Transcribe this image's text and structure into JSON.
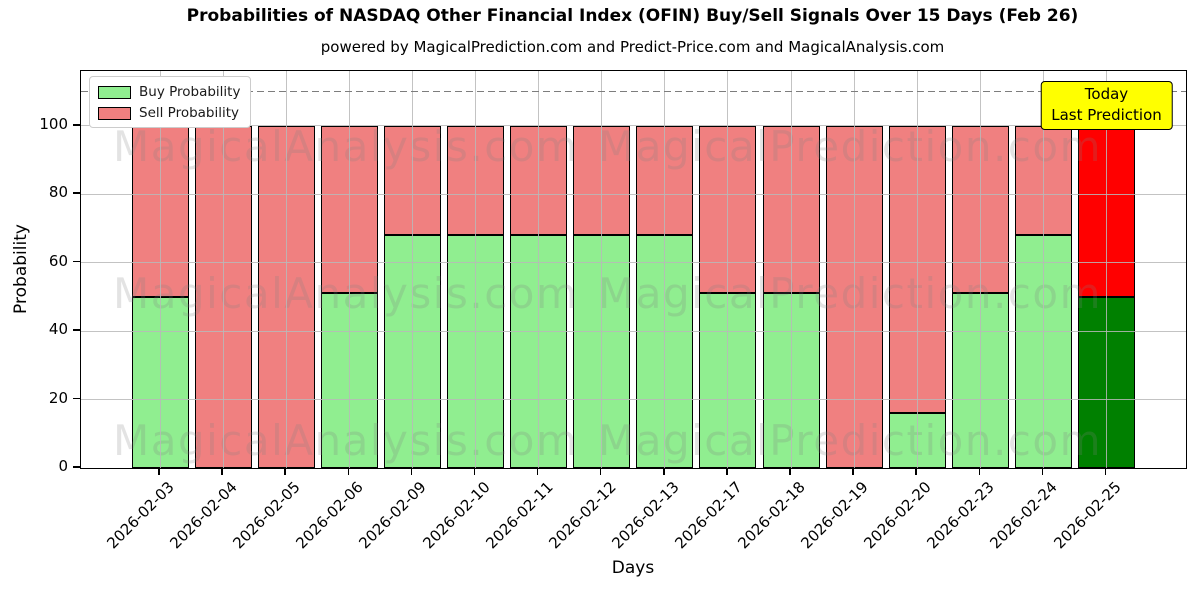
{
  "chart_data": {
    "type": "bar",
    "stacked": true,
    "title": "Probabilities of NASDAQ Other Financial Index (OFIN) Buy/Sell Signals Over 15 Days (Feb 26)",
    "subtitle": "powered by MagicalPrediction.com and Predict-Price.com and MagicalAnalysis.com",
    "xlabel": "Days",
    "ylabel": "Probability",
    "ylim": [
      0,
      116
    ],
    "yticks": [
      0,
      20,
      40,
      60,
      80,
      100
    ],
    "grid": true,
    "grid_on_top": true,
    "dashed_line_y": 110,
    "legend_position": "upper left",
    "categories": [
      "2026-02-03",
      "2026-02-04",
      "2026-02-05",
      "2026-02-06",
      "2026-02-09",
      "2026-02-10",
      "2026-02-11",
      "2026-02-12",
      "2026-02-13",
      "2026-02-17",
      "2026-02-18",
      "2026-02-19",
      "2026-02-20",
      "2026-02-23",
      "2026-02-24",
      "2026-02-25"
    ],
    "series": [
      {
        "name": "Buy Probability",
        "color": "#90EE90",
        "today_color": "#008000",
        "values": [
          50,
          0,
          0,
          51,
          68,
          68,
          68,
          68,
          68,
          51,
          51,
          0,
          16,
          51,
          68,
          50
        ]
      },
      {
        "name": "Sell Probability",
        "color": "#F08080",
        "today_color": "#FF0000",
        "values": [
          50,
          100,
          100,
          49,
          32,
          32,
          32,
          32,
          32,
          49,
          49,
          100,
          84,
          49,
          32,
          50
        ]
      }
    ],
    "today_index": 15
  },
  "annotation": {
    "line1": "Today",
    "line2": "Last Prediction",
    "bg_color": "#FFFF00"
  },
  "watermark": {
    "left_text": "MagicalAnalysis.com",
    "right_text": "MagicalPrediction.com"
  }
}
